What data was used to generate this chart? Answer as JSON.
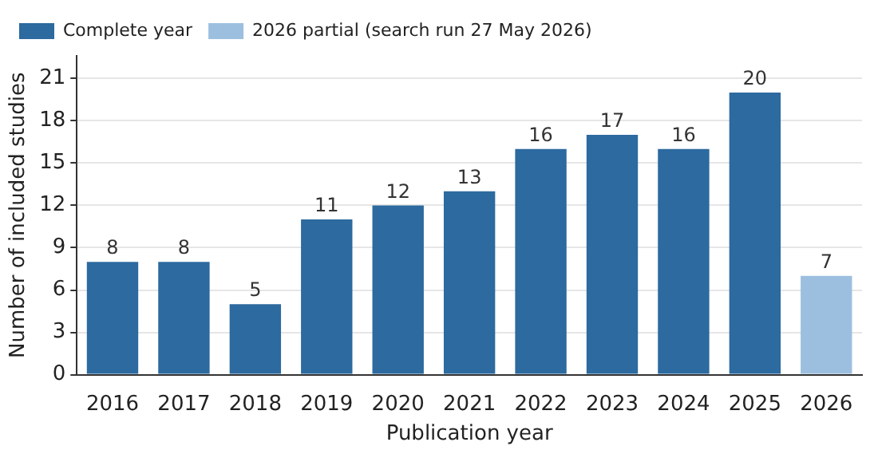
{
  "chart_data": {
    "type": "bar",
    "xlabel": "Publication year",
    "ylabel": "Number of included studies",
    "categories": [
      "2016",
      "2017",
      "2018",
      "2019",
      "2020",
      "2021",
      "2022",
      "2023",
      "2024",
      "2025",
      "2026"
    ],
    "series": [
      {
        "name": "Complete year",
        "color": "#2c6a9f",
        "values": [
          8,
          8,
          5,
          11,
          12,
          13,
          16,
          17,
          16,
          20,
          null
        ]
      },
      {
        "name": "2026 partial (search run 27 May 2026)",
        "color": "#9dbfdf",
        "values": [
          null,
          null,
          null,
          null,
          null,
          null,
          null,
          null,
          null,
          null,
          7
        ]
      }
    ],
    "ylim": [
      0,
      22.6
    ],
    "yticks": [
      0,
      3,
      6,
      9,
      12,
      15,
      18,
      21
    ],
    "grid": "y",
    "legend": "top left",
    "data_labels": true
  }
}
